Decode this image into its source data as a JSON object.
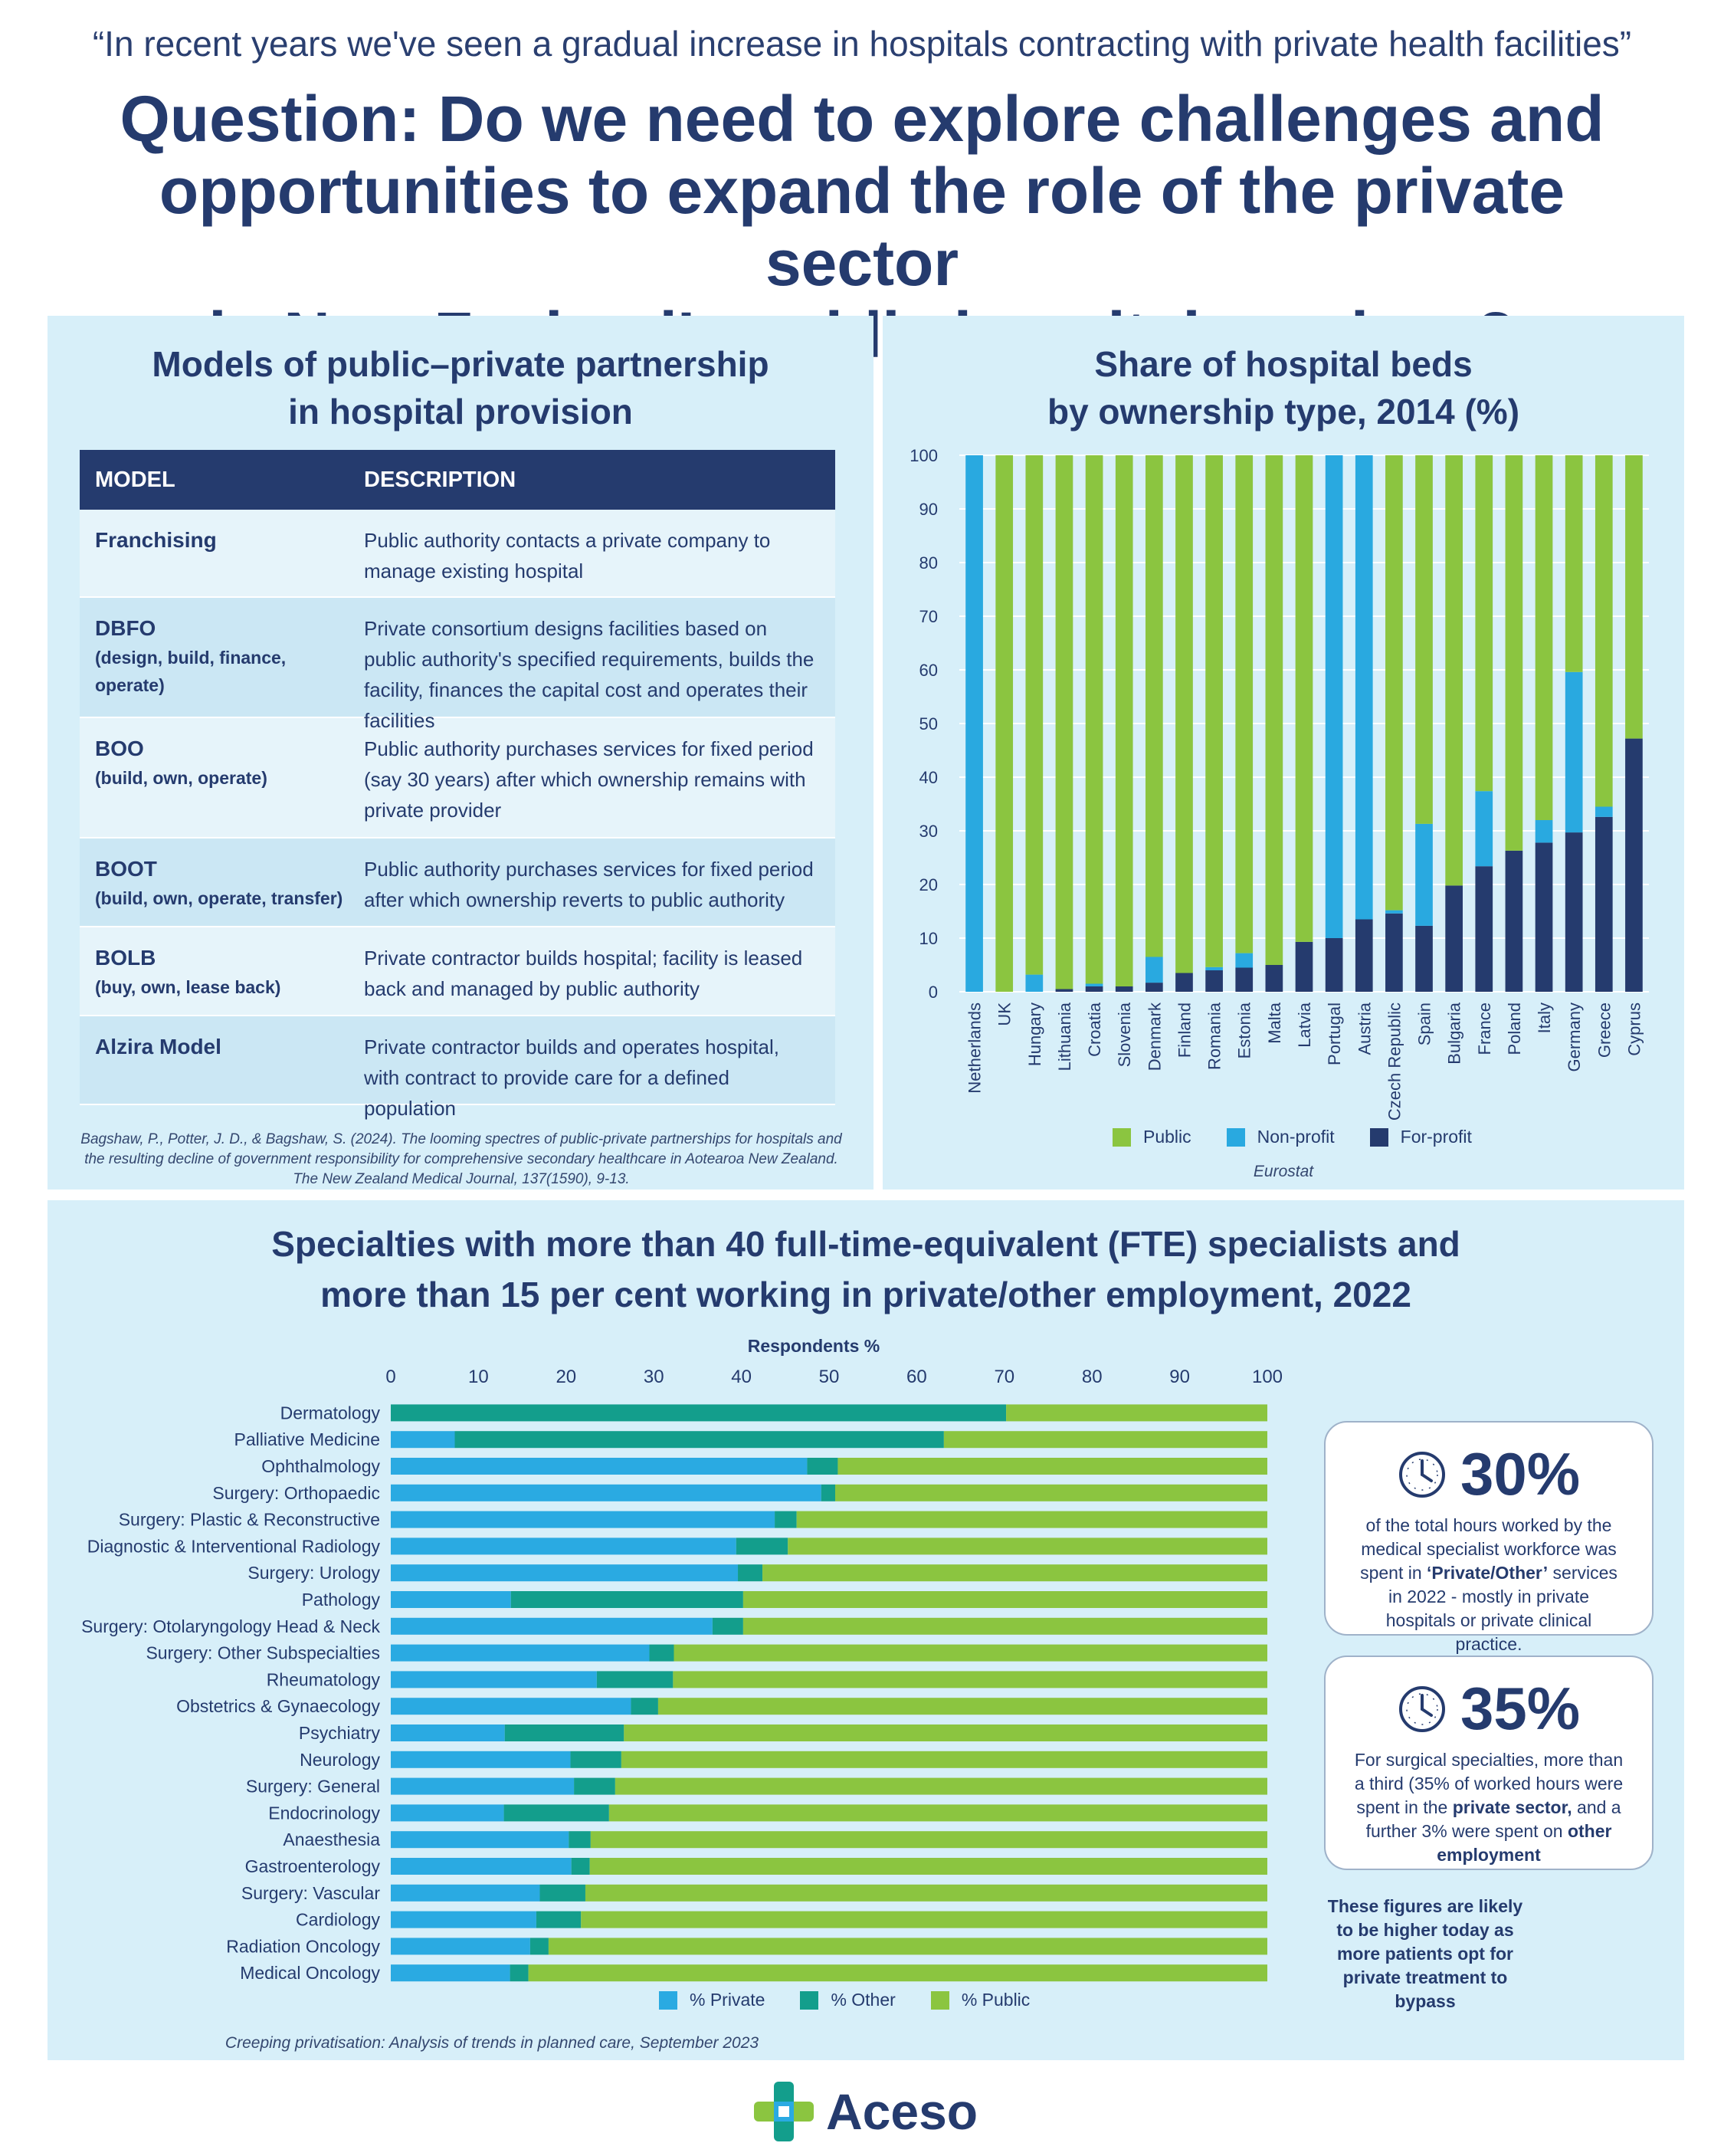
{
  "quote": "“In recent years we've seen a gradual increase in hospitals contracting with private health facilities”",
  "headline": [
    "Question: Do we need to explore challenges and",
    "opportunities to expand the role of the private sector",
    "in New Zealand’s public hospital services?"
  ],
  "colors": {
    "navy": "#253b6e",
    "public": "#8bc540",
    "nonprofit": "#29a9e0",
    "forprofit": "#253b6e",
    "private": "#2aaae2",
    "other": "#139e8c",
    "panel_bg": "#d7eff9"
  },
  "models_panel": {
    "title": [
      "Models of public–private partnership",
      "in hospital provision"
    ],
    "header": {
      "model": "MODEL",
      "description": "DESCRIPTION"
    },
    "rows": [
      {
        "model": "Franchising",
        "sub": "",
        "description": "Public authority contacts a private company to manage existing hospital"
      },
      {
        "model": "DBFO",
        "sub": "(design, build, finance, operate)",
        "description": "Private consortium designs facilities based on public authority's specified requirements, builds the facility, finances the capital cost and operates their facilities"
      },
      {
        "model": "BOO",
        "sub": "(build, own, operate)",
        "description": "Public authority purchases services for fixed period (say 30 years) after which ownership remains with private provider"
      },
      {
        "model": "BOOT",
        "sub": "(build, own, operate, transfer)",
        "description": "Public authority purchases services for fixed period after which ownership reverts to public authority"
      },
      {
        "model": "BOLB",
        "sub": "(buy, own, lease back)",
        "description": "Private contractor builds hospital; facility is leased back and managed by public authority"
      },
      {
        "model": "Alzira Model",
        "sub": "",
        "description": "Private contractor builds and operates hospital, with contract to provide care for a defined population"
      }
    ],
    "citation": "Bagshaw, P., Potter, J. D., & Bagshaw, S. (2024). The looming spectres of public-private partnerships for hospitals and the resulting decline of government responsibility for comprehensive secondary healthcare in Aotearoa New Zealand. The New Zealand Medical Journal, 137(1590), 9-13."
  },
  "chart_data": [
    {
      "type": "bar",
      "stacked": true,
      "orientation": "vertical",
      "title": "Share of hospital beds by ownership type, 2014 (%)",
      "categories": [
        "Netherlands",
        "UK",
        "Hungary",
        "Lithuania",
        "Croatia",
        "Slovenia",
        "Denmark",
        "Finland",
        "Romania",
        "Estonia",
        "Malta",
        "Latvia",
        "Portugal",
        "Austria",
        "Czech Republic",
        "Spain",
        "Bulgaria",
        "France",
        "Poland",
        "Italy",
        "Germany",
        "Greece",
        "Cyprus"
      ],
      "series": [
        {
          "name": "For-profit",
          "values": [
            0,
            0,
            0,
            0.5,
            1,
            1,
            1.7,
            3.5,
            4,
            4.5,
            5,
            9.3,
            10,
            13.5,
            14.6,
            12.3,
            19.8,
            23.4,
            26.3,
            27.8,
            29.7,
            32.6,
            47.2
          ]
        },
        {
          "name": "Non-profit",
          "values": [
            100,
            0,
            3.2,
            0,
            0.5,
            0,
            4.8,
            0,
            0.6,
            2.7,
            0,
            0,
            90,
            86.5,
            0.6,
            19,
            0,
            14,
            0,
            4.2,
            29.9,
            1.9,
            0
          ]
        },
        {
          "name": "Public",
          "values": [
            0,
            100,
            96.8,
            99.5,
            98.5,
            99,
            93.5,
            96.5,
            95.4,
            92.8,
            95,
            90.7,
            0,
            0,
            84.8,
            68.7,
            80.2,
            62.6,
            73.7,
            68,
            40.4,
            65.5,
            52.8
          ]
        }
      ],
      "ylim": [
        0,
        100
      ],
      "yticks": [
        0,
        10,
        20,
        30,
        40,
        50,
        60,
        70,
        80,
        90,
        100
      ],
      "legend": [
        "Public",
        "Non-profit",
        "For-profit"
      ],
      "legend_position": "bottom",
      "grid": true,
      "source": "Eurostat"
    },
    {
      "type": "bar",
      "stacked": true,
      "orientation": "horizontal",
      "title": "Specialties with more than 40 full-time-equivalent (FTE) specialists and more than 15 per cent working in private/other employment, 2022",
      "xlabel": "Respondents %",
      "xlim": [
        0,
        100
      ],
      "xticks": [
        0,
        10,
        20,
        30,
        40,
        50,
        60,
        70,
        80,
        90,
        100
      ],
      "categories": [
        "Dermatology",
        "Palliative Medicine",
        "Ophthalmology",
        "Surgery: Orthopaedic",
        "Surgery:  Plastic & Reconstructive",
        "Diagnostic & Interventional Radiology",
        "Surgery: Urology",
        "Pathology",
        "Surgery: Otolaryngology Head & Neck",
        "Surgery: Other Subspecialties",
        "Rheumatology",
        "Obstetrics & Gynaecology",
        "Psychiatry",
        "Neurology",
        "Surgery: General",
        "Endocrinology",
        "Anaesthesia",
        "Gastroenterology",
        "Surgery: Vascular",
        "Cardiology",
        "Radiation Oncology",
        "Medical Oncology"
      ],
      "series": [
        {
          "name": "% Private",
          "values": [
            0,
            7.3,
            47.5,
            49.1,
            43.8,
            39.4,
            39.6,
            13.7,
            36.7,
            29.5,
            23.5,
            27.4,
            13,
            20.5,
            20.9,
            12.9,
            20.3,
            20.6,
            17,
            16.6,
            15.9,
            13.6
          ]
        },
        {
          "name": "% Other",
          "values": [
            70.2,
            55.8,
            3.5,
            1.6,
            2.5,
            5.9,
            2.8,
            26.5,
            3.5,
            2.8,
            8.7,
            3.1,
            13.6,
            5.8,
            4.7,
            12,
            2.5,
            2.1,
            5.2,
            5.1,
            2.1,
            2.1
          ]
        },
        {
          "name": "% Public",
          "values": [
            29.8,
            36.9,
            49,
            49.3,
            53.7,
            54.7,
            57.6,
            59.8,
            59.8,
            67.7,
            67.8,
            69.5,
            73.4,
            73.7,
            74.4,
            75.1,
            77.2,
            77.3,
            77.8,
            78.3,
            82,
            84.3
          ]
        }
      ],
      "legend": [
        "% Private",
        "% Other",
        "% Public"
      ],
      "legend_position": "bottom",
      "source": "Creeping privatisation: Analysis of trends in planned care, September 2023"
    }
  ],
  "stats": [
    {
      "icon": "clock-icon",
      "value": "30%",
      "text": "of the total hours worked by the medical specialist workforce was spent in ‘Private/Other’ services in 2022 - mostly in private hospitals or private clinical practice."
    },
    {
      "icon": "clock-icon",
      "value": "35%",
      "text": "For surgical specialties, more than a third (35% of worked hours were spent in the private sector, and a further 3% were spent on other employment"
    }
  ],
  "note": "These figures are likely to be higher today as more patients opt for private treatment to bypass",
  "logo": "Aceso"
}
